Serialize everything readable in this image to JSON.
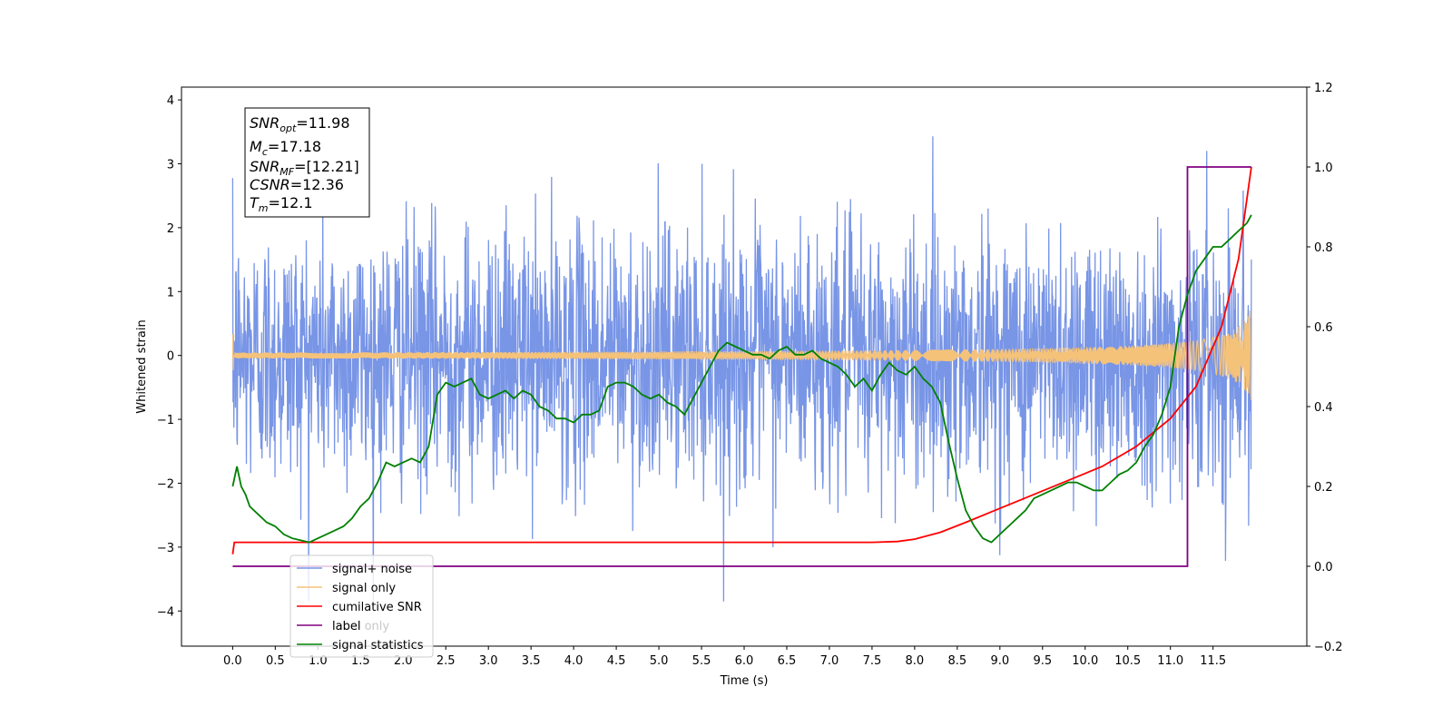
{
  "chart_data": {
    "type": "line",
    "xlabel": "Time (s)",
    "ylabel": "Whitened strain",
    "xlim": [
      -0.6,
      12.6
    ],
    "ylim": [
      -4.55,
      4.2
    ],
    "y2lim": [
      -0.2,
      1.2
    ],
    "x_ticks": [
      "0.0",
      "0.5",
      "1.0",
      "1.5",
      "2.0",
      "2.5",
      "3.0",
      "3.5",
      "4.0",
      "4.5",
      "5.0",
      "5.5",
      "6.0",
      "6.5",
      "7.0",
      "7.5",
      "8.0",
      "8.5",
      "9.0",
      "9.5",
      "10.0",
      "10.5",
      "11.0",
      "11.5"
    ],
    "y_ticks": [
      "4",
      "3",
      "2",
      "1",
      "0",
      "−1",
      "−2",
      "−3",
      "−4"
    ],
    "y2_ticks": [
      "1.2",
      "1.0",
      "0.8",
      "0.6",
      "0.4",
      "0.2",
      "0.0",
      "−0.2"
    ],
    "grid": false,
    "legend_position": "lower-left",
    "info_box": {
      "snr_opt": {
        "base": "SNR",
        "sub": "opt",
        "value": "=11.98"
      },
      "mc": {
        "base": "M",
        "sub": "c",
        "value": "=17.18"
      },
      "snr_mf": {
        "base": "SNR",
        "sub": "MF",
        "value": "=[12.21]"
      },
      "csnr": {
        "base": "CSNR",
        "sub": "",
        "value": "=12.36"
      },
      "tm": {
        "base": "T",
        "sub": "m",
        "value": "=12.1"
      }
    },
    "series": [
      {
        "name": "signal+ noise",
        "color": "#7895e6",
        "axis": "left",
        "description_kind": "noise",
        "envelope": {
          "sigma": 1.0,
          "max": 3.85,
          "min": -3.85
        }
      },
      {
        "name": "signal only",
        "color": "#f5c27a",
        "axis": "left",
        "description_kind": "chirp",
        "amplitude_end": 1.2,
        "t_merge": 12.0
      },
      {
        "name": "cumilative SNR",
        "color": "#ff0000",
        "axis": "right",
        "x": [
          0.0,
          0.02,
          7.5,
          7.8,
          8.0,
          8.3,
          8.6,
          9.0,
          9.4,
          9.8,
          10.2,
          10.6,
          11.0,
          11.3,
          11.6,
          11.8,
          11.95
        ],
        "values": [
          0.03,
          0.06,
          0.06,
          0.062,
          0.068,
          0.085,
          0.11,
          0.145,
          0.18,
          0.215,
          0.25,
          0.3,
          0.37,
          0.45,
          0.6,
          0.77,
          1.0
        ]
      },
      {
        "name": "label",
        "color": "#800080",
        "axis": "right",
        "x": [
          0.0,
          11.13,
          11.13,
          11.2,
          11.2,
          11.95
        ],
        "values": [
          0.0,
          0.0,
          0.0,
          0.0,
          1.0,
          1.0
        ]
      },
      {
        "name": "signal statistics",
        "color": "#008000",
        "axis": "right",
        "x": [
          0.0,
          0.05,
          0.1,
          0.15,
          0.2,
          0.3,
          0.4,
          0.5,
          0.6,
          0.7,
          0.8,
          0.9,
          1.0,
          1.1,
          1.2,
          1.3,
          1.4,
          1.5,
          1.6,
          1.7,
          1.8,
          1.9,
          2.0,
          2.1,
          2.2,
          2.3,
          2.4,
          2.5,
          2.6,
          2.7,
          2.8,
          2.9,
          3.0,
          3.1,
          3.2,
          3.3,
          3.4,
          3.5,
          3.6,
          3.7,
          3.8,
          3.9,
          4.0,
          4.1,
          4.2,
          4.3,
          4.4,
          4.5,
          4.6,
          4.7,
          4.8,
          4.9,
          5.0,
          5.1,
          5.2,
          5.3,
          5.4,
          5.5,
          5.6,
          5.7,
          5.8,
          5.9,
          6.0,
          6.1,
          6.2,
          6.3,
          6.4,
          6.5,
          6.6,
          6.7,
          6.8,
          6.9,
          7.0,
          7.1,
          7.2,
          7.3,
          7.4,
          7.5,
          7.6,
          7.7,
          7.8,
          7.9,
          8.0,
          8.1,
          8.2,
          8.3,
          8.4,
          8.5,
          8.6,
          8.7,
          8.8,
          8.9,
          9.0,
          9.1,
          9.2,
          9.3,
          9.4,
          9.5,
          9.6,
          9.7,
          9.8,
          9.9,
          10.0,
          10.1,
          10.2,
          10.3,
          10.4,
          10.5,
          10.6,
          10.7,
          10.8,
          10.9,
          11.0,
          11.1,
          11.2,
          11.3,
          11.4,
          11.5,
          11.6,
          11.7,
          11.8,
          11.9,
          11.95
        ],
        "values": [
          0.2,
          0.25,
          0.2,
          0.18,
          0.15,
          0.13,
          0.11,
          0.1,
          0.08,
          0.07,
          0.065,
          0.06,
          0.07,
          0.08,
          0.09,
          0.1,
          0.12,
          0.15,
          0.17,
          0.21,
          0.26,
          0.25,
          0.26,
          0.27,
          0.26,
          0.3,
          0.43,
          0.46,
          0.45,
          0.46,
          0.47,
          0.43,
          0.42,
          0.43,
          0.44,
          0.42,
          0.44,
          0.43,
          0.4,
          0.39,
          0.37,
          0.37,
          0.36,
          0.38,
          0.38,
          0.39,
          0.45,
          0.46,
          0.46,
          0.45,
          0.43,
          0.42,
          0.43,
          0.41,
          0.4,
          0.38,
          0.42,
          0.46,
          0.5,
          0.54,
          0.56,
          0.55,
          0.54,
          0.53,
          0.53,
          0.52,
          0.54,
          0.55,
          0.53,
          0.53,
          0.54,
          0.52,
          0.51,
          0.5,
          0.48,
          0.45,
          0.47,
          0.44,
          0.48,
          0.51,
          0.49,
          0.48,
          0.5,
          0.47,
          0.45,
          0.41,
          0.31,
          0.22,
          0.14,
          0.1,
          0.07,
          0.06,
          0.08,
          0.1,
          0.12,
          0.14,
          0.17,
          0.18,
          0.19,
          0.2,
          0.21,
          0.21,
          0.2,
          0.19,
          0.19,
          0.21,
          0.23,
          0.24,
          0.26,
          0.3,
          0.33,
          0.38,
          0.45,
          0.6,
          0.68,
          0.74,
          0.77,
          0.8,
          0.8,
          0.82,
          0.84,
          0.86,
          0.88
        ]
      }
    ]
  },
  "legend_ghost_text": "label only"
}
